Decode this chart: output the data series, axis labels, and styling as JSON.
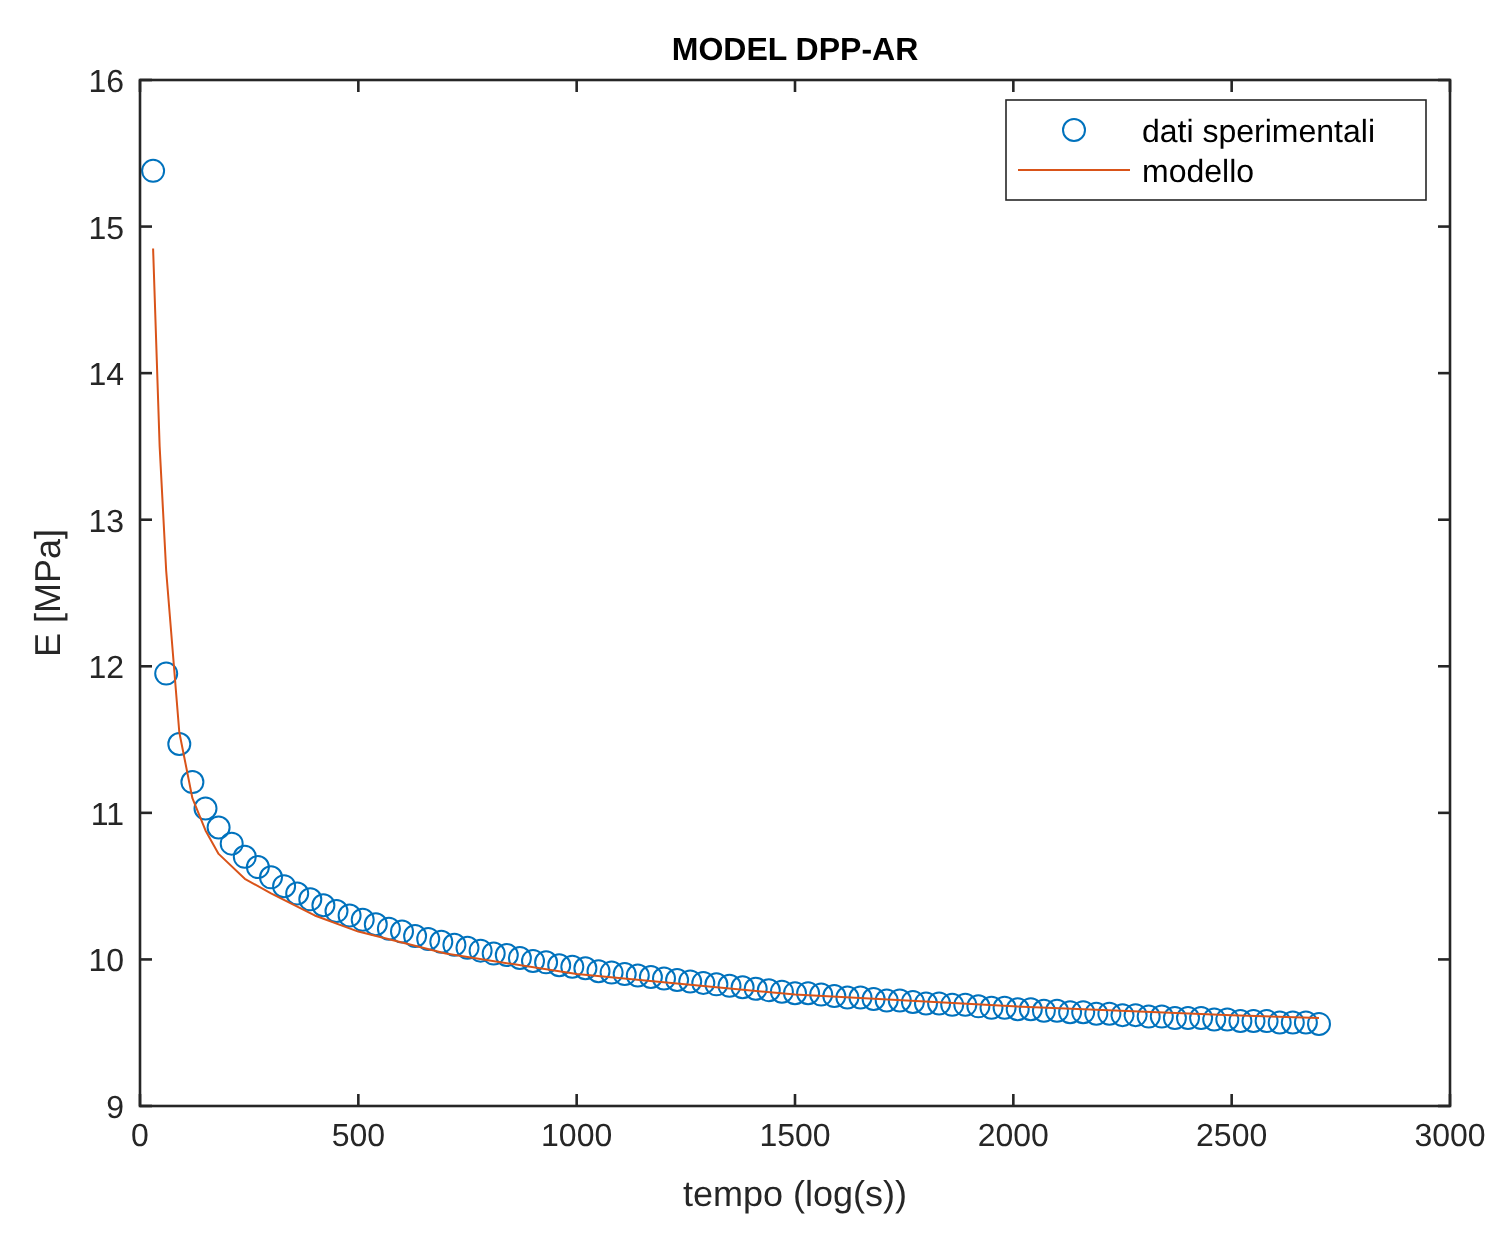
{
  "chart_data": {
    "type": "scatter",
    "title": "MODEL DPP-AR",
    "xlabel": "tempo (log(s))",
    "ylabel": "E [MPa]",
    "xlim": [
      0,
      3000
    ],
    "xticks": [
      0,
      500,
      1000,
      1500,
      2000,
      2500,
      3000
    ],
    "ylim": [
      9,
      16
    ],
    "yticks": [
      9,
      10,
      11,
      12,
      13,
      14,
      15,
      16
    ],
    "grid": false,
    "legend": "top right",
    "series": [
      {
        "name": "dati sperimentali",
        "marker": "circle",
        "color": "#0072bd",
        "x": [
          30,
          60,
          90,
          120,
          150,
          180,
          210,
          240,
          270,
          300,
          330,
          360,
          390,
          420,
          450,
          480,
          510,
          540,
          570,
          600,
          630,
          660,
          690,
          720,
          750,
          780,
          810,
          840,
          870,
          900,
          930,
          960,
          990,
          1020,
          1050,
          1080,
          1110,
          1140,
          1170,
          1200,
          1230,
          1260,
          1290,
          1320,
          1350,
          1380,
          1410,
          1440,
          1470,
          1500,
          1530,
          1560,
          1590,
          1620,
          1650,
          1680,
          1710,
          1740,
          1770,
          1800,
          1830,
          1860,
          1890,
          1920,
          1950,
          1980,
          2010,
          2040,
          2070,
          2100,
          2130,
          2160,
          2190,
          2220,
          2250,
          2280,
          2310,
          2340,
          2370,
          2400,
          2430,
          2460,
          2490,
          2520,
          2550,
          2580,
          2610,
          2640,
          2670,
          2700
        ],
        "values": [
          15.38,
          11.95,
          11.47,
          11.21,
          11.03,
          10.9,
          10.79,
          10.7,
          10.63,
          10.56,
          10.5,
          10.45,
          10.41,
          10.37,
          10.33,
          10.3,
          10.27,
          10.24,
          10.21,
          10.19,
          10.16,
          10.14,
          10.12,
          10.1,
          10.08,
          10.06,
          10.04,
          10.03,
          10.01,
          9.99,
          9.98,
          9.96,
          9.95,
          9.94,
          9.92,
          9.91,
          9.9,
          9.89,
          9.88,
          9.87,
          9.86,
          9.85,
          9.84,
          9.83,
          9.82,
          9.81,
          9.8,
          9.79,
          9.78,
          9.77,
          9.77,
          9.76,
          9.75,
          9.74,
          9.74,
          9.73,
          9.72,
          9.72,
          9.71,
          9.7,
          9.7,
          9.69,
          9.69,
          9.68,
          9.67,
          9.67,
          9.66,
          9.66,
          9.65,
          9.65,
          9.64,
          9.64,
          9.63,
          9.63,
          9.62,
          9.62,
          9.61,
          9.61,
          9.6,
          9.6,
          9.6,
          9.59,
          9.59,
          9.58,
          9.58,
          9.58,
          9.57,
          9.57,
          9.57,
          9.56
        ]
      },
      {
        "name": "modello",
        "type": "line",
        "marker": "none",
        "line_style": "solid",
        "color": "#d95319",
        "x": [
          30,
          45,
          60,
          90,
          120,
          150,
          180,
          240,
          300,
          400,
          500,
          700,
          1000,
          1500,
          2000,
          2500,
          2700
        ],
        "values": [
          14.85,
          13.5,
          12.65,
          11.55,
          11.1,
          10.88,
          10.72,
          10.55,
          10.45,
          10.3,
          10.19,
          10.04,
          9.9,
          9.76,
          9.68,
          9.62,
          9.6
        ]
      }
    ]
  }
}
